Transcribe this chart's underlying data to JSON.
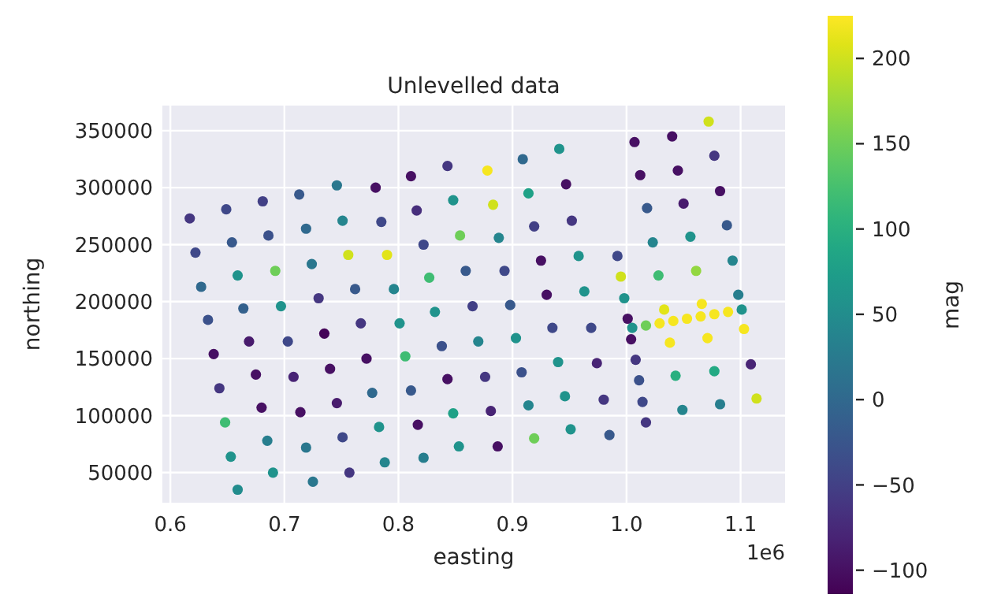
{
  "chart_data": {
    "type": "scatter",
    "title": "Unlevelled data",
    "xlabel": "easting",
    "ylabel": "northing",
    "clabel": "mag",
    "annotations": [
      "1e6"
    ],
    "xlim": [
      0.593,
      1.139
    ],
    "ylim": [
      23600,
      372000
    ],
    "xticks": [
      0.6,
      0.7,
      0.8,
      0.9,
      {
        "value": 1,
        "label": "1.0"
      },
      1.1
    ],
    "yticks": [
      50000,
      100000,
      150000,
      200000,
      250000,
      300000,
      350000
    ],
    "clim": [
      -114,
      225
    ],
    "cticks": [
      {
        "value": -100,
        "label": "−100"
      },
      {
        "value": -50,
        "label": "−50"
      },
      0,
      50,
      100,
      150,
      200
    ],
    "grid": true,
    "marker": "circle",
    "series": [
      {
        "x": [
          0.617,
          0.622,
          0.627,
          0.633,
          0.638,
          0.643,
          0.648,
          0.653,
          0.659,
          0.649,
          0.654,
          0.659,
          0.664,
          0.669,
          0.675,
          0.68,
          0.685,
          0.69,
          0.681,
          0.686,
          0.692,
          0.697,
          0.703,
          0.708,
          0.714,
          0.719,
          0.725,
          0.713,
          0.719,
          0.724,
          0.73,
          0.735,
          0.74,
          0.746,
          0.751,
          0.757,
          0.746,
          0.751,
          0.756,
          0.762,
          0.767,
          0.772,
          0.777,
          0.783,
          0.788,
          0.78,
          0.785,
          0.79,
          0.796,
          0.801,
          0.806,
          0.811,
          0.817,
          0.822,
          0.811,
          0.816,
          0.822,
          0.827,
          0.832,
          0.838,
          0.843,
          0.848,
          0.853,
          0.843,
          0.848,
          0.854,
          0.859,
          0.865,
          0.87,
          0.876,
          0.881,
          0.887,
          0.878,
          0.883,
          0.888,
          0.893,
          0.898,
          0.903,
          0.908,
          0.914,
          0.919,
          0.909,
          0.914,
          0.919,
          0.925,
          0.93,
          0.935,
          0.94,
          0.946,
          0.951,
          0.941,
          0.947,
          0.952,
          0.958,
          0.963,
          0.969,
          0.974,
          0.98,
          0.985,
          0.992,
          0.995,
          0.998,
          1.001,
          1.004,
          1.008,
          1.011,
          1.014,
          1.017,
          1.007,
          1.012,
          1.018,
          1.023,
          1.028,
          1.033,
          1.038,
          1.043,
          1.049,
          1.04,
          1.045,
          1.05,
          1.056,
          1.061,
          1.066,
          1.071,
          1.077,
          1.082,
          1.072,
          1.077,
          1.082,
          1.088,
          1.093,
          1.098,
          1.103,
          1.109,
          1.114,
          1.005,
          1.017,
          1.029,
          1.041,
          1.053,
          1.065,
          1.077,
          1.089,
          1.101
        ],
        "values": [
          273000,
          243000,
          213000,
          184000,
          154000,
          124000,
          94000,
          64000,
          35000,
          281000,
          252000,
          223000,
          194000,
          165000,
          136000,
          107000,
          78000,
          50000,
          288000,
          258000,
          227000,
          196000,
          165000,
          134000,
          103000,
          72000,
          42000,
          294000,
          264000,
          233000,
          203000,
          172000,
          141000,
          111000,
          81000,
          50000,
          302000,
          271000,
          241000,
          211000,
          181000,
          150000,
          120000,
          90000,
          59000,
          300000,
          270000,
          241000,
          211000,
          181000,
          152000,
          122000,
          92000,
          63000,
          310000,
          280000,
          250000,
          221000,
          191000,
          161000,
          132000,
          102000,
          73000,
          319000,
          289000,
          258000,
          227000,
          196000,
          165000,
          134000,
          104000,
          73000,
          315000,
          285000,
          256000,
          227000,
          197000,
          168000,
          138000,
          109000,
          80000,
          325000,
          295000,
          266000,
          236000,
          206000,
          177000,
          147000,
          117000,
          88000,
          334000,
          303000,
          271000,
          240000,
          209000,
          177000,
          146000,
          114000,
          83000,
          240000,
          222000,
          203000,
          185000,
          167000,
          149000,
          131000,
          112000,
          94000,
          340000,
          311000,
          282000,
          252000,
          223000,
          193000,
          164000,
          135000,
          105000,
          345000,
          315000,
          286000,
          257000,
          227000,
          198000,
          168000,
          139000,
          110000,
          358000,
          328000,
          297000,
          267000,
          236000,
          206000,
          176000,
          145000,
          115000,
          177000,
          179000,
          181000,
          183000,
          185000,
          187000,
          189000,
          191000,
          193000
        ],
        "cvalues": [
          -60,
          -40,
          0,
          -30,
          -100,
          -60,
          120,
          60,
          50,
          -40,
          -20,
          60,
          -10,
          -90,
          -100,
          -100,
          30,
          60,
          -50,
          -30,
          150,
          60,
          -40,
          -80,
          -100,
          20,
          20,
          -20,
          0,
          20,
          -60,
          -110,
          -100,
          -90,
          -40,
          -60,
          20,
          40,
          200,
          -20,
          -60,
          -100,
          0,
          60,
          40,
          -100,
          -40,
          210,
          40,
          60,
          120,
          -20,
          -100,
          30,
          -100,
          -70,
          -40,
          120,
          60,
          -30,
          -100,
          80,
          60,
          -60,
          60,
          150,
          -20,
          -50,
          40,
          -60,
          -80,
          -100,
          220,
          200,
          40,
          -40,
          -20,
          60,
          -30,
          40,
          150,
          0,
          80,
          -50,
          -100,
          -100,
          -40,
          60,
          60,
          60,
          60,
          -100,
          -60,
          60,
          60,
          -40,
          -80,
          -60,
          -20,
          -40,
          200,
          60,
          -100,
          -100,
          -60,
          -30,
          -40,
          -60,
          -100,
          -100,
          -20,
          40,
          120,
          210,
          220,
          100,
          40,
          -100,
          -100,
          -90,
          60,
          170,
          220,
          220,
          90,
          30,
          200,
          -60,
          -100,
          -20,
          40,
          30,
          220,
          -80,
          200,
          60,
          150,
          220,
          220,
          220,
          220,
          220,
          220,
          60
        ]
      }
    ]
  }
}
